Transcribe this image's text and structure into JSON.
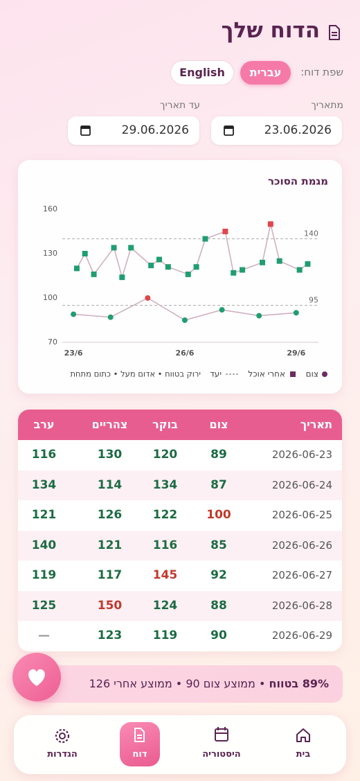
{
  "header": {
    "title": "הדוח שלך"
  },
  "language": {
    "label": "שפת דוח:",
    "options": [
      "עברית",
      "English"
    ],
    "active": 0
  },
  "dates": {
    "from_label": "מתאריך",
    "from": "23.06.2026",
    "to_label": "עד תאריך",
    "to": "29.06.2026"
  },
  "chart_data": {
    "type": "line",
    "title": "מגמת הסוכר",
    "xlim": [
      22.7,
      29.6
    ],
    "xticks": [
      {
        "value": 23,
        "label": "23/6"
      },
      {
        "value": 26,
        "label": "26/6"
      },
      {
        "value": 29,
        "label": "29/6"
      }
    ],
    "ylim": [
      70,
      160
    ],
    "yticks": [
      70,
      100,
      130,
      160
    ],
    "line_color": "#cfb0c2",
    "above_color": "#e0474c",
    "target_name": "יעד",
    "series": [
      {
        "name": "צום",
        "marker": "circle",
        "color": "#1f9e70",
        "target": 95,
        "x": [
          23,
          24,
          25,
          26,
          27,
          28,
          29
        ],
        "values": [
          89,
          87,
          100,
          85,
          92,
          88,
          90
        ]
      },
      {
        "name": "אחרי אוכל",
        "marker": "square",
        "color": "#1f9e70",
        "target": 140,
        "x": [
          23.09,
          23.31,
          23.55,
          24.09,
          24.31,
          24.55,
          25.09,
          25.31,
          25.55,
          26.09,
          26.31,
          26.55,
          27.09,
          27.31,
          27.55,
          28.09,
          28.31,
          28.55,
          29.09,
          29.31
        ],
        "values": [
          120,
          130,
          116,
          134,
          114,
          134,
          122,
          126,
          121,
          116,
          121,
          140,
          145,
          117,
          119,
          124,
          150,
          125,
          119,
          123
        ]
      }
    ],
    "legend_note": "ירוק בטווח • אדום מעל • כתום מתחת"
  },
  "table": {
    "headers": [
      "תאריך",
      "צום",
      "בוקר",
      "צהריים",
      "ערב"
    ],
    "rows": [
      [
        "2026-06-23",
        89,
        120,
        130,
        116
      ],
      [
        "2026-06-24",
        87,
        134,
        114,
        134
      ],
      [
        "2026-06-25",
        100,
        122,
        126,
        121
      ],
      [
        "2026-06-26",
        85,
        116,
        121,
        140
      ],
      [
        "2026-06-27",
        92,
        145,
        117,
        119
      ],
      [
        "2026-06-28",
        88,
        124,
        150,
        125
      ],
      [
        "2026-06-29",
        90,
        119,
        123,
        "—"
      ]
    ]
  },
  "summary": {
    "highlight": "89% בטווח",
    "text": "• ממוצע צום 90 • ממוצע אחרי 126"
  },
  "nav": {
    "items": [
      "בית",
      "היסטוריה",
      "דוח",
      "הגדרות"
    ],
    "active": 2
  }
}
